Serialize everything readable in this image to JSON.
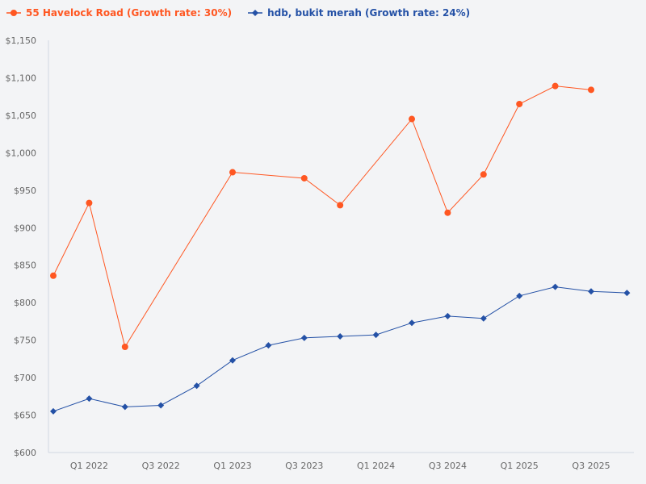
{
  "chart_data": {
    "type": "line",
    "title": "",
    "xlabel": "",
    "ylabel": "",
    "ylim": [
      600,
      1150
    ],
    "yticks": [
      "$600",
      "$650",
      "$700",
      "$750",
      "$800",
      "$850",
      "$900",
      "$950",
      "$1,000",
      "$1,050",
      "$1,100",
      "$1,150"
    ],
    "ytick_values": [
      600,
      650,
      700,
      750,
      800,
      850,
      900,
      950,
      1000,
      1050,
      1100,
      1150
    ],
    "x": [
      "Q4 2021",
      "Q1 2022",
      "Q2 2022",
      "Q3 2022",
      "Q4 2022",
      "Q1 2023",
      "Q2 2023",
      "Q3 2023",
      "Q4 2023",
      "Q1 2024",
      "Q2 2024",
      "Q3 2024",
      "Q4 2024",
      "Q1 2025",
      "Q2 2025",
      "Q3 2025",
      "Q4 2025"
    ],
    "xtick_labels": [
      "Q1 2022",
      "Q3 2022",
      "Q1 2023",
      "Q3 2023",
      "Q1 2024",
      "Q3 2024",
      "Q1 2025",
      "Q3 2025"
    ],
    "grid": false,
    "legend_placement": "top-left",
    "series": [
      {
        "name": "55 Havelock Road (Growth rate: 30%)",
        "color": "#ff5722",
        "marker": "circle",
        "values": [
          836,
          933,
          741,
          null,
          null,
          974,
          null,
          966,
          930,
          null,
          1045,
          920,
          971,
          1065,
          1089,
          1084,
          null
        ]
      },
      {
        "name": "hdb, bukit merah (Growth rate: 24%)",
        "color": "#2451a6",
        "marker": "diamond",
        "values": [
          655,
          672,
          661,
          663,
          689,
          723,
          743,
          753,
          755,
          757,
          773,
          782,
          779,
          809,
          821,
          815,
          813
        ]
      }
    ]
  }
}
